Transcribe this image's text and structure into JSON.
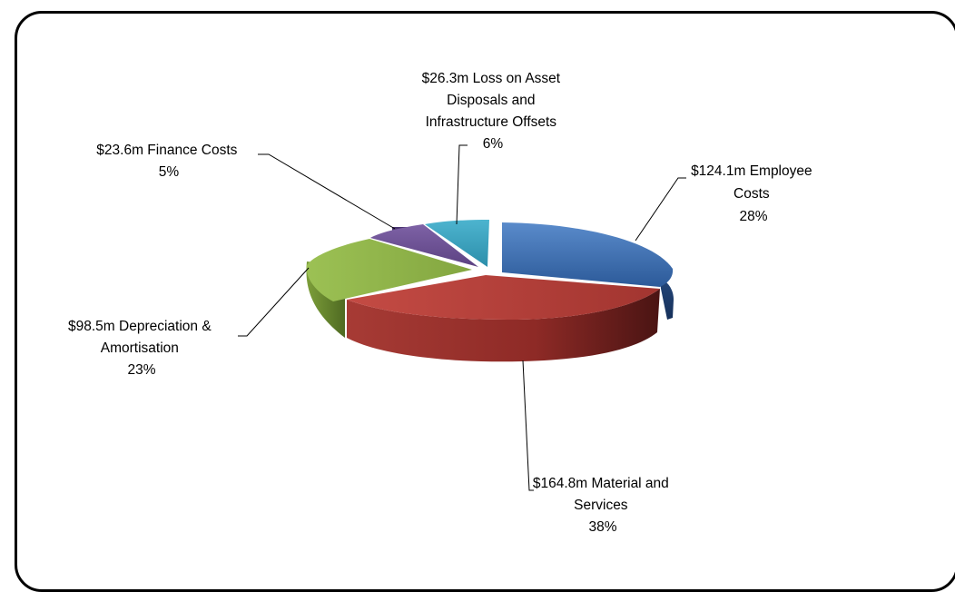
{
  "chart_data": {
    "type": "pie",
    "style": "3d exploded",
    "slices": [
      {
        "name": "Employee Costs",
        "amount": "$124.1m",
        "value": 124.1,
        "percent": 28,
        "label_lines": [
          "$124.1m Employee",
          "Costs",
          "28%"
        ],
        "color": "#3f74b8"
      },
      {
        "name": "Material and Services",
        "amount": "$164.8m",
        "value": 164.8,
        "percent": 38,
        "label_lines": [
          "$164.8m Material and",
          "Services",
          "38%"
        ],
        "color": "#b23c37"
      },
      {
        "name": "Depreciation & Amortisation",
        "amount": "$98.5m",
        "value": 98.5,
        "percent": 23,
        "label_lines": [
          "$98.5m Depreciation &",
          "Amortisation",
          "23%"
        ],
        "color": "#8aad45"
      },
      {
        "name": "Finance Costs",
        "amount": "$23.6m",
        "value": 23.6,
        "percent": 5,
        "label_lines": [
          "$23.6m Finance Costs",
          "5%"
        ],
        "color": "#6c4f94"
      },
      {
        "name": "Loss on Asset Disposals and Infrastructure Offsets",
        "amount": "$26.3m",
        "value": 26.3,
        "percent": 6,
        "label_lines": [
          "$26.3m Loss on Asset",
          "Disposals and",
          "Infrastructure Offsets",
          "6%"
        ],
        "color": "#3aa3bf"
      }
    ]
  }
}
